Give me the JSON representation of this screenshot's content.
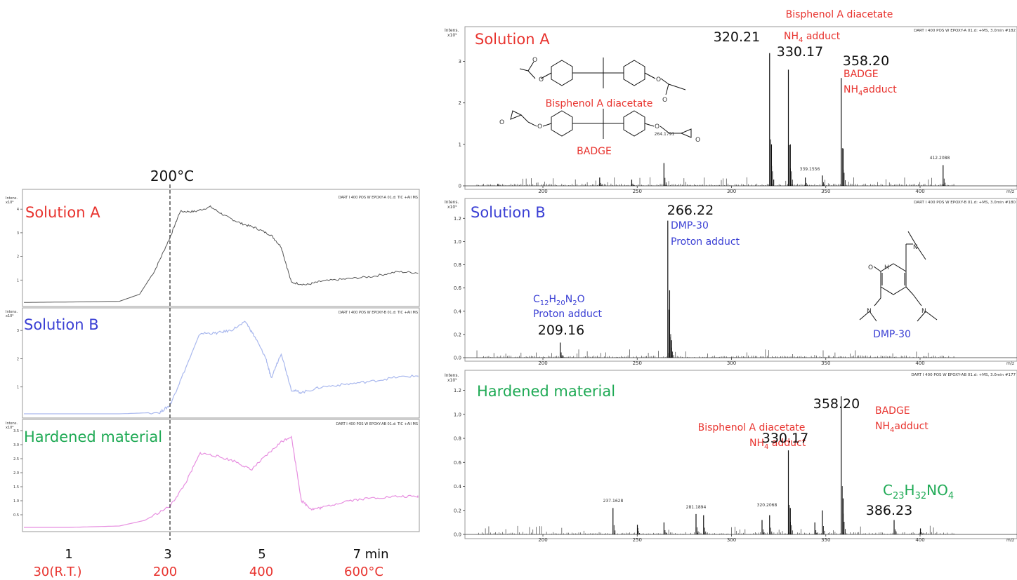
{
  "colors": {
    "red": "#e8332e",
    "blue": "#3a3fd4",
    "green": "#1faa55",
    "trace_a": "#555555",
    "trace_b": "#a9b8ee",
    "trace_h": "#e78fe0",
    "axis": "#333333",
    "dash": "#444444"
  },
  "tic": {
    "temp_marker": "200°C",
    "x_time_labels": [
      "1",
      "3",
      "5",
      "7 min"
    ],
    "x_temp_labels": [
      "30(R.T.)",
      "200",
      "400",
      "600°C"
    ],
    "intens_label": "Intens.",
    "y_exp": "x10⁶",
    "panels": [
      {
        "title": "Solution A",
        "header": "DART I 400 POS W EPOXY-A 01.d: TIC +All MS",
        "y_ticks": [
          "4",
          "3",
          "2",
          "1"
        ]
      },
      {
        "title": "Solution B",
        "header": "DART I 400 POS W EPOXY-B 01.d: TIC +All MS",
        "y_ticks": [
          "3",
          "2",
          "1"
        ]
      },
      {
        "title": "Hardened material",
        "header": "DART I 400 POS W EPOXY-AB 01.d: TIC +All MS",
        "y_ticks": [
          "3.5",
          "3.0",
          "2.5",
          "2.0",
          "1.5",
          "1.0",
          "0.5"
        ]
      }
    ]
  },
  "ms": {
    "intens_label": "Intens.",
    "x_unit": "m/z",
    "x_ticks": [
      "200",
      "250",
      "300",
      "350",
      "400"
    ],
    "panels": [
      {
        "title": "Solution A",
        "y_exp": "x10⁵",
        "header": "DART I 400 POS W EPOXY-A 01.d: +MS, 3.0min #182",
        "y_ticks": [
          "3",
          "2",
          "1",
          "0"
        ],
        "top_label": "Bisphenol A diacetate",
        "annotations": {
          "p320": "320.21",
          "nh4_prefix": "NH",
          "nh4_sub": "4",
          "nh4_suffix": " adduct",
          "p330": "330.17",
          "p358": "358.20",
          "badge": "BADGE",
          "badge_nh4_prefix": "NH",
          "badge_nh4_sub": "4",
          "badge_nh4_suffix": "adduct",
          "small_264": "264.1791",
          "small_339": "339.1556",
          "small_412": "412.2088"
        },
        "struct_labels": {
          "bpa": "Bisphenol A diacetate",
          "badge": "BADGE",
          "o": "O"
        }
      },
      {
        "title": "Solution B",
        "y_exp": "x10⁵",
        "header": "DART I 400 POS W EPOXY-B 01.d: +MS, 3.0min #180",
        "y_ticks": [
          "1.2",
          "1.0",
          "0.8",
          "0.6",
          "0.4",
          "0.2",
          "0.0"
        ],
        "annotations": {
          "p266": "266.22",
          "dmp": "DMP-30",
          "dmp_proton": "Proton adduct",
          "formula_c": "C",
          "formula_12": "12",
          "formula_h": "H",
          "formula_20": "20",
          "formula_n": "N",
          "formula_2": "2",
          "formula_o": "O",
          "proton": "Proton adduct",
          "p209": "209.16"
        },
        "struct_labels": {
          "dmp30": "DMP-30",
          "o": "O",
          "h": "H",
          "n": "N"
        }
      },
      {
        "title": "Hardened material",
        "y_exp": "x10⁵",
        "header": "DART I 400 POS W EPOXY-AB 01.d: +MS, 3.0min #177",
        "y_ticks": [
          "1.2",
          "1.0",
          "0.8",
          "0.6",
          "0.4",
          "0.2",
          "0.0"
        ],
        "annotations": {
          "p358": "358.20",
          "badge": "BADGE",
          "badge_nh4_prefix": "NH",
          "badge_nh4_sub": "4",
          "badge_nh4_suffix": "adduct",
          "bpa": "Bisphenol A diacetate",
          "nh4_prefix": "NH",
          "nh4_sub": "4",
          "nh4_suffix": " adduct",
          "p330": "330.17",
          "f_c": "C",
          "f_23": "23",
          "f_h": "H",
          "f_32": "32",
          "f_no": "NO",
          "f_4": "4",
          "p386": "386.23",
          "small_237": "237.1628",
          "small_281": "281.1894",
          "small_320": "320.2068"
        }
      }
    ]
  },
  "chart_data": [
    {
      "type": "line",
      "title": "",
      "xlabel": "",
      "ylabel": "Intens.",
      "x_ticks": [
        1,
        3,
        5,
        7
      ],
      "series": [
        {
          "name": "Solution A",
          "x": [
            0,
            1,
            2,
            2.4,
            2.7,
            3.0,
            3.2,
            3.5,
            3.8,
            4.1,
            4.4,
            4.7,
            5.0,
            5.2,
            5.4,
            5.7,
            6,
            6.5,
            7,
            7.5,
            8
          ],
          "values": [
            0.05,
            0.07,
            0.1,
            0.4,
            1.4,
            2.8,
            3.9,
            3.9,
            4.1,
            3.7,
            3.4,
            3.2,
            2.9,
            2.4,
            0.9,
            0.8,
            0.95,
            1.05,
            1.15,
            1.35,
            1.3
          ]
        },
        {
          "name": "Solution B",
          "x": [
            0,
            1,
            2,
            2.8,
            3.0,
            3.2,
            3.6,
            3.9,
            4.2,
            4.5,
            4.7,
            4.9,
            5.0,
            5.2,
            5.4,
            5.6,
            6,
            6.5,
            7,
            7.5,
            8
          ],
          "values": [
            0.05,
            0.05,
            0.05,
            0.1,
            0.35,
            1.2,
            2.9,
            2.9,
            3.0,
            3.3,
            2.7,
            2.0,
            1.3,
            2.2,
            0.9,
            0.8,
            1.0,
            1.1,
            1.2,
            1.35,
            1.4
          ]
        },
        {
          "name": "Hardened material",
          "x": [
            0,
            1,
            2,
            2.5,
            3.0,
            3.3,
            3.6,
            3.9,
            4.3,
            4.6,
            4.9,
            5.2,
            5.4,
            5.6,
            5.8,
            6,
            6.5,
            7,
            7.5,
            8
          ],
          "values": [
            0.05,
            0.05,
            0.1,
            0.3,
            0.8,
            1.6,
            2.7,
            2.6,
            2.4,
            2.1,
            2.6,
            3.1,
            3.3,
            1.0,
            0.7,
            0.75,
            1.0,
            1.1,
            1.15,
            1.15
          ]
        }
      ]
    },
    {
      "type": "bar",
      "title": "Solution A",
      "xlabel": "m/z",
      "ylabel": "Intens. x10⁵",
      "xlim": [
        160,
        420
      ],
      "ylim": [
        0,
        3.4
      ],
      "x": [
        176.1,
        230.1,
        247.1,
        264.18,
        320.21,
        321.2,
        330.17,
        331.2,
        339.16,
        348.2,
        358.2,
        359.2,
        412.21
      ],
      "values": [
        0.05,
        0.2,
        0.15,
        0.55,
        3.2,
        1.0,
        2.8,
        1.0,
        0.2,
        0.25,
        2.6,
        0.9,
        0.5
      ]
    },
    {
      "type": "bar",
      "title": "Solution B",
      "xlabel": "m/z",
      "ylabel": "Intens. x10⁵",
      "xlim": [
        160,
        420
      ],
      "ylim": [
        0,
        1.25
      ],
      "x": [
        209.16,
        210.2,
        266.22,
        267.2,
        268.2
      ],
      "values": [
        0.13,
        0.02,
        1.18,
        0.58,
        0.15
      ]
    },
    {
      "type": "bar",
      "title": "Hardened material",
      "xlabel": "m/z",
      "ylabel": "Intens. x10⁵",
      "xlim": [
        160,
        420
      ],
      "ylim": [
        0,
        1.25
      ],
      "x": [
        237.16,
        250.1,
        264.2,
        281.19,
        285.2,
        316.2,
        320.21,
        330.17,
        331.2,
        344.2,
        348.2,
        358.2,
        359.2,
        386.23,
        400.2
      ],
      "values": [
        0.22,
        0.08,
        0.1,
        0.17,
        0.16,
        0.12,
        0.16,
        0.7,
        0.22,
        0.1,
        0.2,
        1.15,
        0.3,
        0.12,
        0.05
      ]
    }
  ]
}
